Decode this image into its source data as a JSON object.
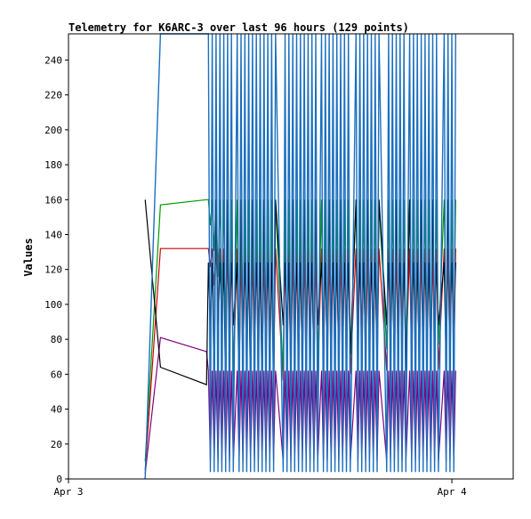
{
  "chart_data": {
    "type": "line",
    "title": "Telemetry for K6ARC-3 over last 96 hours (129 points)",
    "xlabel": "",
    "ylabel": "Values",
    "ylim": [
      0,
      255
    ],
    "y_ticks": [
      0,
      20,
      40,
      60,
      80,
      100,
      120,
      140,
      160,
      180,
      200,
      220,
      240
    ],
    "x_range": [
      0,
      116
    ],
    "x_ticks": [
      {
        "label": "Apr 3",
        "x": 0
      },
      {
        "label": "Apr 4",
        "x": 100
      }
    ],
    "grid": false,
    "legend": "none",
    "gaps": [
      [
        34.5,
        36
      ],
      [
        43,
        44
      ],
      [
        54,
        56
      ],
      [
        65,
        66
      ],
      [
        73.5,
        75
      ],
      [
        81,
        83
      ],
      [
        88,
        89
      ],
      [
        96.5,
        98
      ],
      [
        102,
        116
      ]
    ],
    "series": [
      {
        "color": "#1a6fbf",
        "x": [
          20,
          24,
          36,
          43
        ],
        "values": [
          0,
          255,
          255,
          255
        ],
        "style": "spiky",
        "low": 4,
        "high": 255
      },
      {
        "color": "#000000",
        "x": [
          20,
          24,
          36,
          43,
          53,
          63,
          73,
          82,
          92,
          101
        ],
        "values": [
          160,
          64,
          54,
          45,
          48,
          62,
          72,
          62,
          65,
          65
        ],
        "style": "band",
        "high": 160,
        "mid_low": 88,
        "mid_high": 124
      },
      {
        "color": "#009900",
        "x": [
          20,
          24,
          36,
          43,
          53,
          63,
          73,
          82,
          92,
          101
        ],
        "values": [
          10,
          157,
          160,
          57,
          58,
          64,
          69,
          74,
          76,
          78
        ],
        "style": "band",
        "high": 160
      },
      {
        "color": "#cc0000",
        "x": [
          20,
          24,
          36,
          43,
          53,
          63,
          73,
          82,
          92,
          101
        ],
        "values": [
          5,
          132,
          132,
          58,
          56,
          57,
          60,
          62,
          63,
          63
        ],
        "style": "band",
        "high": 132
      },
      {
        "color": "#800080",
        "x": [
          20,
          24,
          36,
          43,
          53,
          63,
          73,
          82,
          92,
          101
        ],
        "values": [
          3,
          81,
          73,
          58,
          55,
          56,
          58,
          60,
          64,
          66
        ],
        "style": "spiky",
        "low": 10,
        "high": 62
      }
    ]
  }
}
